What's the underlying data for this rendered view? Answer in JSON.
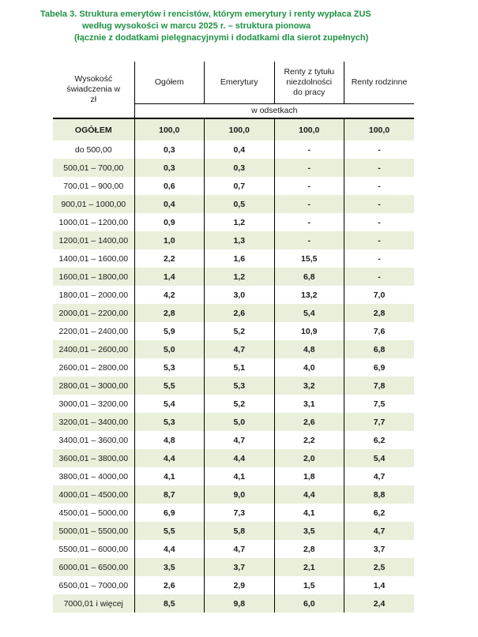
{
  "title": {
    "line1": "Tabela 3. Struktura emerytów i rencistów, którym emerytury i renty wypłaca ZUS",
    "line2": "według wysokości w marcu 2025 r. – struktura pionowa",
    "line3": "(łącznie z dodatkami pielęgnacyjnymi i dodatkami dla sierot zupełnych)"
  },
  "colors": {
    "title_green": "#1f9245",
    "row_green": "#e9efda",
    "border_black": "#000000",
    "text_dark": "#1a1a1a"
  },
  "table": {
    "col1_header": "Wysokość świadczenia w zł",
    "column_headers": [
      "Ogółem",
      "Emerytury",
      "Renty z tytułu niezdolności do pracy",
      "Renty rodzinne"
    ],
    "subheader": "w odsetkach",
    "rows": [
      {
        "label": "OGÓŁEM",
        "values": [
          "100,0",
          "100,0",
          "100,0",
          "100,0"
        ],
        "bold": true
      },
      {
        "label": "do 500,00",
        "values": [
          "0,3",
          "0,4",
          "-",
          "-"
        ]
      },
      {
        "label": "500,01 – 700,00",
        "values": [
          "0,3",
          "0,3",
          "-",
          "-"
        ]
      },
      {
        "label": "700,01 – 900,00",
        "values": [
          "0,6",
          "0,7",
          "-",
          "-"
        ]
      },
      {
        "label": "900,01 – 1000,00",
        "values": [
          "0,4",
          "0,5",
          "-",
          "-"
        ]
      },
      {
        "label": "1000,01 – 1200,00",
        "values": [
          "0,9",
          "1,2",
          "-",
          "-"
        ]
      },
      {
        "label": "1200,01 – 1400,00",
        "values": [
          "1,0",
          "1,3",
          "-",
          "-"
        ]
      },
      {
        "label": "1400,01 – 1600,00",
        "values": [
          "2,2",
          "1,6",
          "15,5",
          "-"
        ]
      },
      {
        "label": "1600,01 – 1800,00",
        "values": [
          "1,4",
          "1,2",
          "6,8",
          "-"
        ]
      },
      {
        "label": "1800,01 – 2000,00",
        "values": [
          "4,2",
          "3,0",
          "13,2",
          "7,0"
        ]
      },
      {
        "label": "2000,01 – 2200,00",
        "values": [
          "2,8",
          "2,6",
          "5,4",
          "2,8"
        ]
      },
      {
        "label": "2200,01 – 2400,00",
        "values": [
          "5,9",
          "5,2",
          "10,9",
          "7,6"
        ]
      },
      {
        "label": "2400,01 – 2600,00",
        "values": [
          "5,0",
          "4,7",
          "4,8",
          "6,8"
        ]
      },
      {
        "label": "2600,01 – 2800,00",
        "values": [
          "5,3",
          "5,1",
          "4,0",
          "6,9"
        ]
      },
      {
        "label": "2800,01 – 3000,00",
        "values": [
          "5,5",
          "5,3",
          "3,2",
          "7,8"
        ]
      },
      {
        "label": "3000,01 – 3200,00",
        "values": [
          "5,4",
          "5,2",
          "3,1",
          "7,5"
        ]
      },
      {
        "label": "3200,01 – 3400,00",
        "values": [
          "5,3",
          "5,0",
          "2,6",
          "7,7"
        ]
      },
      {
        "label": "3400,01 – 3600,00",
        "values": [
          "4,8",
          "4,7",
          "2,2",
          "6,2"
        ]
      },
      {
        "label": "3600,01 – 3800,00",
        "values": [
          "4,4",
          "4,4",
          "2,0",
          "5,4"
        ]
      },
      {
        "label": "3800,01 – 4000,00",
        "values": [
          "4,1",
          "4,1",
          "1,8",
          "4,7"
        ]
      },
      {
        "label": "4000,01 – 4500,00",
        "values": [
          "8,7",
          "9,0",
          "4,4",
          "8,8"
        ]
      },
      {
        "label": "4500,01 – 5000,00",
        "values": [
          "6,9",
          "7,3",
          "4,1",
          "6,2"
        ]
      },
      {
        "label": "5000,01 – 5500,00",
        "values": [
          "5,5",
          "5,8",
          "3,5",
          "4,7"
        ]
      },
      {
        "label": "5500,01 – 6000,00",
        "values": [
          "4,4",
          "4,7",
          "2,8",
          "3,7"
        ]
      },
      {
        "label": "6000,01 – 6500,00",
        "values": [
          "3,5",
          "3,7",
          "2,1",
          "2,5"
        ]
      },
      {
        "label": "6500,01 – 7000,00",
        "values": [
          "2,6",
          "2,9",
          "1,5",
          "1,4"
        ]
      },
      {
        "label": "7000,01 i więcej",
        "values": [
          "8,5",
          "9,8",
          "6,0",
          "2,4"
        ]
      }
    ]
  }
}
